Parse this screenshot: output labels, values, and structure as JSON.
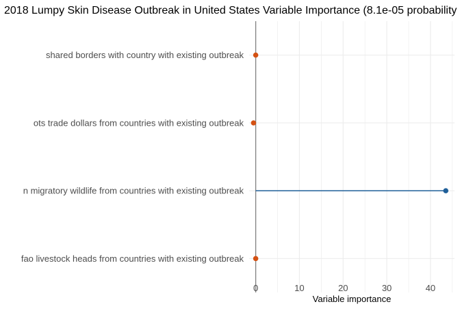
{
  "chart_data": {
    "type": "scatter",
    "title": "2018 Lumpy Skin Disease Outbreak in United States Variable Importance (8.1e-05 probability",
    "xlabel": "Variable importance",
    "ylabel": "",
    "xlim": [
      -1.5,
      45.5
    ],
    "xticks": [
      0,
      10,
      20,
      30,
      40
    ],
    "tick_labels": [
      "0",
      "10",
      "20",
      "30",
      "40"
    ],
    "categories": [
      "shared borders with country with existing outbreak",
      "ots trade dollars from countries with existing outbreak",
      "n migratory wildlife from countries with existing outbreak",
      "fao livestock heads from countries with existing outbreak"
    ],
    "values": [
      0.0,
      -0.5,
      43.5,
      0.0
    ],
    "colors": {
      "positive": "#1f5f99",
      "negative": "#d45113",
      "zero_line": "#808080",
      "grid": "#ebebeb"
    },
    "grid": true,
    "legend": "none"
  }
}
